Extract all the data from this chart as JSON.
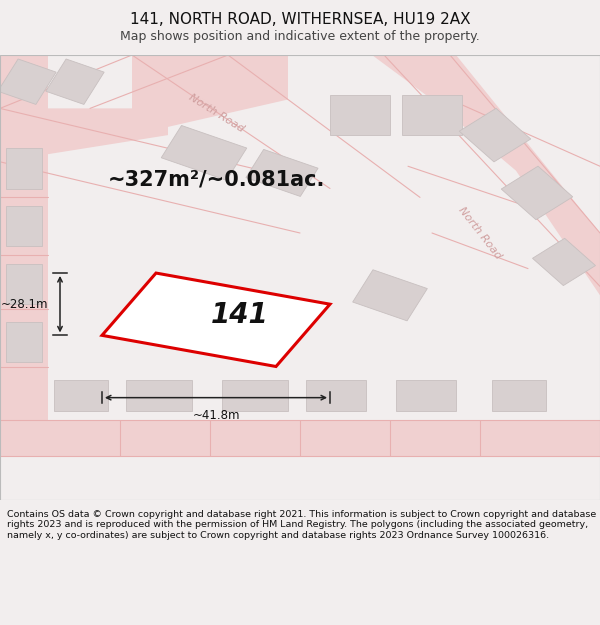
{
  "title": "141, NORTH ROAD, WITHERNSEA, HU19 2AX",
  "subtitle": "Map shows position and indicative extent of the property.",
  "area_label": "~327m²/~0.081ac.",
  "plot_label": "141",
  "dim_width": "~41.8m",
  "dim_height": "~28.1m",
  "road_label": "North Road",
  "footer": "Contains OS data © Crown copyright and database right 2021. This information is subject to Crown copyright and database rights 2023 and is reproduced with the permission of HM Land Registry. The polygons (including the associated geometry, namely x, y co-ordinates) are subject to Crown copyright and database rights 2023 Ordnance Survey 100026316.",
  "bg_color": "#f2eeee",
  "map_bg": "#f5f1f1",
  "road_stroke": "#e8b0b0",
  "road_fill": "#f0d0d0",
  "building_fill": "#d8d0d0",
  "building_edge": "#c8c0c0",
  "plot_color": "#dd0000",
  "plot_fill": "#ffffff",
  "dim_line_color": "#222222",
  "label_color": "#111111",
  "road_text_color": "#d0a0a0",
  "title_fontsize": 11,
  "subtitle_fontsize": 9,
  "area_fontsize": 15,
  "plot_label_fontsize": 20,
  "dim_fontsize": 8.5,
  "road_label_fontsize": 8,
  "footer_fontsize": 6.8
}
